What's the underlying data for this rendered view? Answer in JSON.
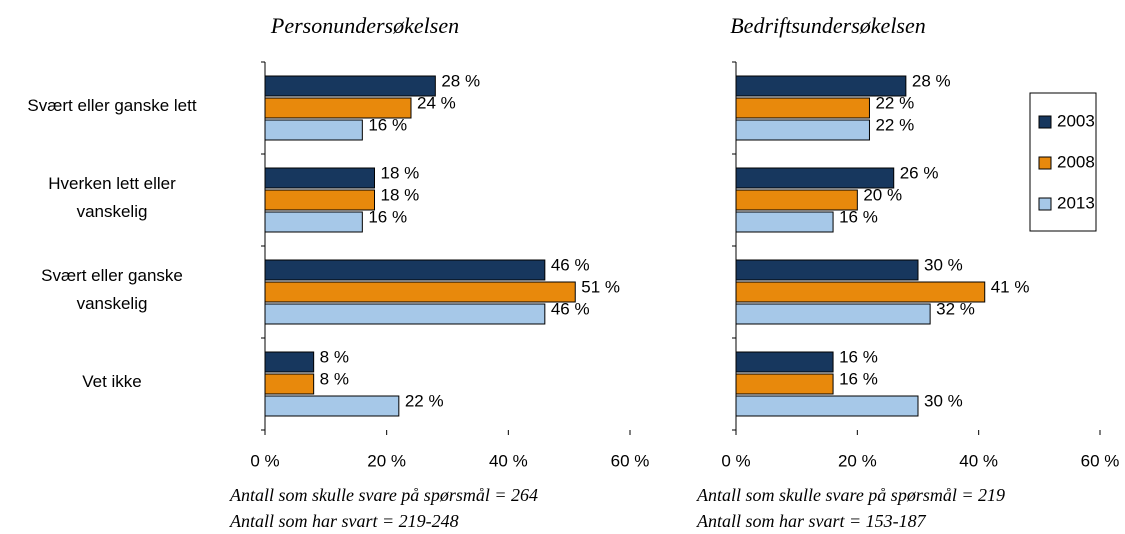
{
  "chart_data": [
    {
      "type": "bar",
      "orientation": "horizontal",
      "title": "Personundersøkelsen",
      "categories": [
        "Svært eller ganske lett",
        "Hverken lett eller vanskelig",
        "Svært eller ganske vanskelig",
        "Vet ikke"
      ],
      "series": [
        {
          "color": "#17375e",
          "values": [
            28,
            18,
            46,
            8
          ],
          "value_labels": [
            "28 %",
            "18 %",
            "46 %",
            "8 %"
          ]
        },
        {
          "color": "#e8890c",
          "values": [
            24,
            18,
            51,
            8
          ],
          "value_labels": [
            "24 %",
            "18 %",
            "51 %",
            "8 %"
          ]
        },
        {
          "color": "#a6c8e8",
          "values": [
            16,
            16,
            46,
            22
          ],
          "value_labels": [
            "16 %",
            "16 %",
            "46 %",
            "22 %"
          ]
        }
      ],
      "xlim": [
        0,
        60
      ],
      "xticks": [
        {
          "value": 0,
          "label": "0 %"
        },
        {
          "value": 20,
          "label": "20 %"
        },
        {
          "value": 40,
          "label": "40 %"
        },
        {
          "value": 60,
          "label": "60 %"
        }
      ],
      "notes": [
        "Antall som skulle svare på spørsmål = 264",
        "Antall som har svart = 219-248"
      ]
    },
    {
      "type": "bar",
      "orientation": "horizontal",
      "title": "Bedriftsundersøkelsen",
      "series": [
        {
          "name": "2003",
          "color": "#17375e",
          "values": [
            28,
            26,
            30,
            16
          ],
          "value_labels": [
            "28 %",
            "26 %",
            "30 %",
            "16 %"
          ]
        },
        {
          "name": "2008",
          "color": "#e8890c",
          "values": [
            22,
            20,
            41,
            16
          ],
          "value_labels": [
            "22 %",
            "20 %",
            "41 %",
            "16 %"
          ]
        },
        {
          "name": "2013",
          "color": "#a6c8e8",
          "values": [
            22,
            16,
            32,
            30
          ],
          "value_labels": [
            "22 %",
            "16 %",
            "32 %",
            "30 %"
          ]
        }
      ],
      "xlim": [
        0,
        60
      ],
      "xticks": [
        {
          "value": 0,
          "label": "0 %"
        },
        {
          "value": 20,
          "label": "20 %"
        },
        {
          "value": 40,
          "label": "40 %"
        },
        {
          "value": 60,
          "label": "60 %"
        }
      ],
      "legend": "right",
      "notes": [
        "Antall som skulle svare på spørsmål = 219",
        "Antall som har svart = 153-187"
      ]
    }
  ]
}
